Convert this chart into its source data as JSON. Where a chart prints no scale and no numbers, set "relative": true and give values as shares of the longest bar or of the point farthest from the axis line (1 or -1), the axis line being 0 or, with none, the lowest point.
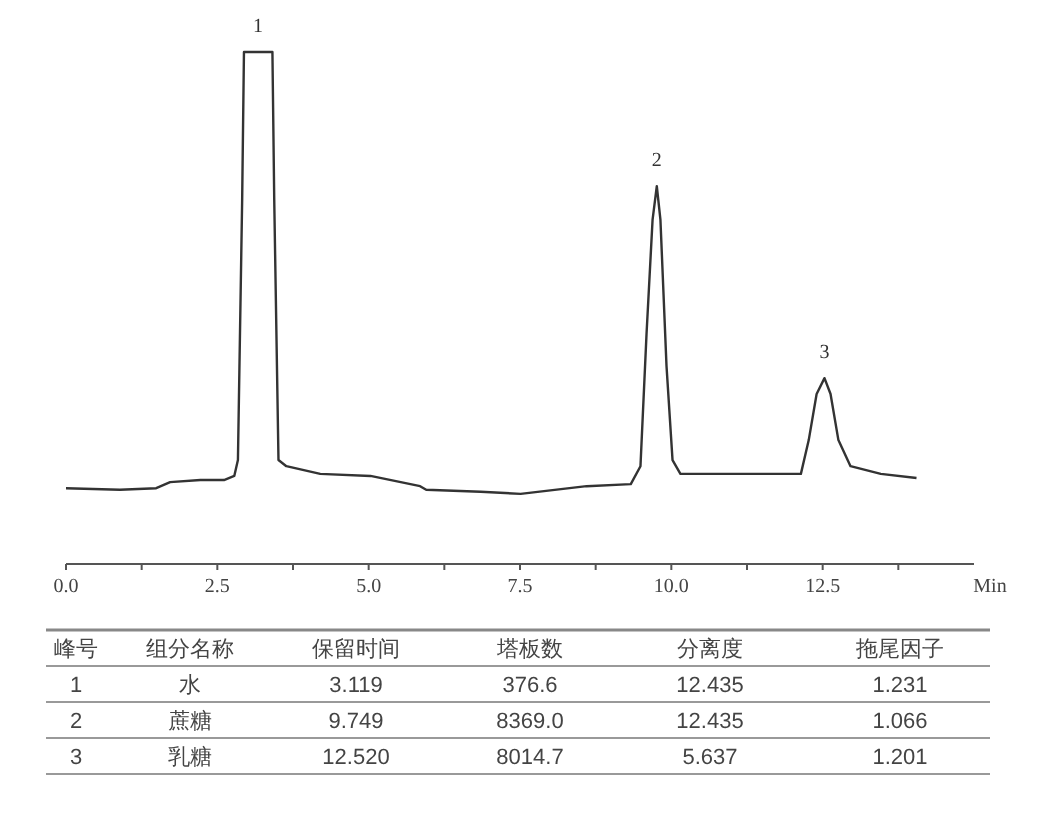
{
  "chart_data": {
    "type": "line",
    "relative": true,
    "xlabel": "Min",
    "xlim": [
      0,
      15
    ],
    "xticks": [
      {
        "value": 0,
        "label": "0.0"
      },
      {
        "value": 1.25,
        "label": null
      },
      {
        "value": 2.5,
        "label": "2.5"
      },
      {
        "value": 3.75,
        "label": null
      },
      {
        "value": 5,
        "label": "5.0"
      },
      {
        "value": 6.25,
        "label": null
      },
      {
        "value": 7.5,
        "label": "7.5"
      },
      {
        "value": 8.75,
        "label": null
      },
      {
        "value": 10,
        "label": "10.0"
      },
      {
        "value": 11.25,
        "label": null
      },
      {
        "value": 12.5,
        "label": "12.5"
      },
      {
        "value": 13.75,
        "label": null
      }
    ],
    "x": [
      0.0,
      0.89,
      1.49,
      1.72,
      2.22,
      2.61,
      2.78,
      2.84,
      2.91,
      2.94,
      3.41,
      3.44,
      3.51,
      3.64,
      4.2,
      5.03,
      5.85,
      5.95,
      6.85,
      7.51,
      8.6,
      9.33,
      9.49,
      9.59,
      9.69,
      9.76,
      9.82,
      9.92,
      10.02,
      10.15,
      10.81,
      12.14,
      12.27,
      12.4,
      12.53,
      12.63,
      12.76,
      12.96,
      13.46,
      14.05
    ],
    "series": [
      {
        "color": "#333333",
        "values": [
          0.148,
          0.145,
          0.148,
          0.16,
          0.164,
          0.164,
          0.172,
          0.203,
          0.711,
          1.0,
          1.0,
          0.711,
          0.203,
          0.191,
          0.176,
          0.172,
          0.152,
          0.145,
          0.141,
          0.137,
          0.152,
          0.156,
          0.191,
          0.449,
          0.672,
          0.738,
          0.672,
          0.387,
          0.203,
          0.176,
          0.176,
          0.176,
          0.242,
          0.332,
          0.363,
          0.332,
          0.242,
          0.191,
          0.176,
          0.168
        ]
      }
    ],
    "annotations": [
      {
        "text": "1",
        "x": 3.17,
        "y": 1.0
      },
      {
        "text": "2",
        "x": 9.76,
        "y": 0.738
      },
      {
        "text": "3",
        "x": 12.53,
        "y": 0.363
      },
      "峰号",
      "组分名称",
      "保留时间",
      "塔板数",
      "分离度",
      "拖尾因子",
      "1",
      "水",
      "3.119",
      "376.6",
      "12.435",
      "1.231",
      "2",
      "蔗糖",
      "9.749",
      "8369.0",
      "12.435",
      "1.066",
      "3",
      "乳糖",
      "12.520",
      "8014.7",
      "5.637",
      "1.201"
    ]
  }
}
